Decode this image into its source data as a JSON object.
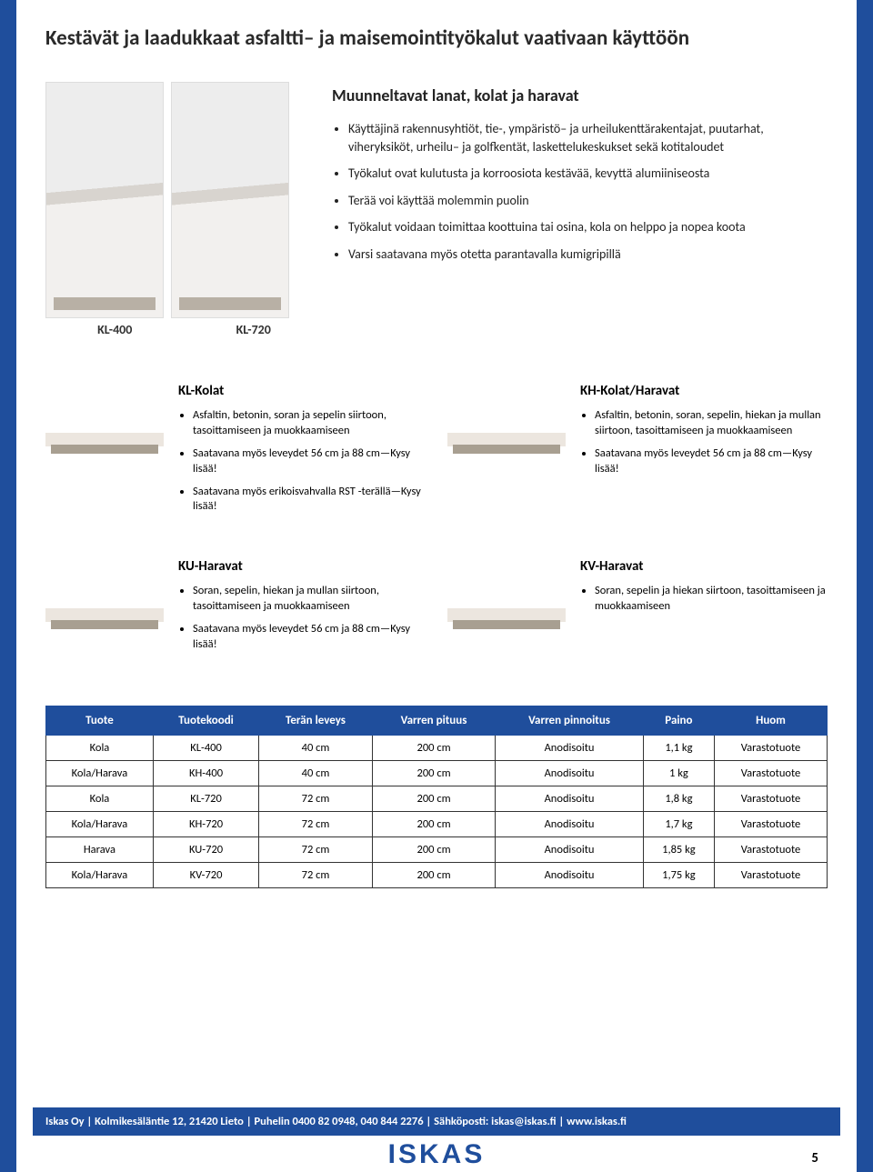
{
  "title": "Kestävät ja laadukkaat asfaltti– ja maisemointityökalut vaativaan käyttöön",
  "hero": {
    "heading": "Muunneltavat lanat, kolat ja haravat",
    "image_labels": [
      "KL-400",
      "KL-720"
    ],
    "bullets": [
      "Käyttäjinä rakennusyhtiöt, tie-, ympäristö– ja urheilukenttärakentajat, puutarhat, viheryksiköt, urheilu– ja golfkentät, laskettelukeskukset sekä kotitaloudet",
      "Työkalut ovat kulutusta ja korroosiota kestävää, kevyttä alumiiniseosta",
      "Terää voi käyttää molemmin puolin",
      "Työkalut voidaan toimittaa koottuina tai osina, kola on helppo ja nopea koota",
      "Varsi saatavana myös otetta parantavalla kumigripillä"
    ]
  },
  "products": [
    {
      "name": "KL-Kolat",
      "bullets": [
        "Asfaltin, betonin, soran ja sepelin siirtoon, tasoittamiseen ja muokkaamiseen",
        "Saatavana myös leveydet 56 cm ja 88 cm—Kysy lisää!",
        "Saatavana myös erikoisvahvalla RST -terällä—Kysy lisää!"
      ]
    },
    {
      "name": "KH-Kolat/Haravat",
      "bullets": [
        "Asfaltin, betonin, soran, sepelin, hiekan ja mullan siirtoon, tasoittamiseen ja muokkaamiseen",
        "Saatavana myös leveydet 56 cm ja 88 cm—Kysy lisää!"
      ]
    },
    {
      "name": "KU-Haravat",
      "bullets": [
        "Soran, sepelin, hiekan ja mullan siirtoon, tasoittamiseen ja muokkaamiseen",
        "Saatavana myös leveydet 56 cm ja 88 cm—Kysy lisää!"
      ]
    },
    {
      "name": "KV-Haravat",
      "bullets": [
        "Soran, sepelin ja hiekan siirtoon, tasoittamiseen ja muokkaamiseen"
      ]
    }
  ],
  "table": {
    "headers": [
      "Tuote",
      "Tuotekoodi",
      "Terän leveys",
      "Varren pituus",
      "Varren pinnoitus",
      "Paino",
      "Huom"
    ],
    "rows": [
      [
        "Kola",
        "KL-400",
        "40 cm",
        "200 cm",
        "Anodisoitu",
        "1,1 kg",
        "Varastotuote"
      ],
      [
        "Kola/Harava",
        "KH-400",
        "40 cm",
        "200 cm",
        "Anodisoitu",
        "1 kg",
        "Varastotuote"
      ],
      [
        "Kola",
        "KL-720",
        "72 cm",
        "200 cm",
        "Anodisoitu",
        "1,8 kg",
        "Varastotuote"
      ],
      [
        "Kola/Harava",
        "KH-720",
        "72 cm",
        "200 cm",
        "Anodisoitu",
        "1,7 kg",
        "Varastotuote"
      ],
      [
        "Harava",
        "KU-720",
        "72 cm",
        "200 cm",
        "Anodisoitu",
        "1,85 kg",
        "Varastotuote"
      ],
      [
        "Kola/Harava",
        "KV-720",
        "72 cm",
        "200 cm",
        "Anodisoitu",
        "1,75 kg",
        "Varastotuote"
      ]
    ]
  },
  "footer": "Iskas Oy | Kolmikesäläntie 12, 21420 Lieto | Puhelin  0400 82 0948, 040 844 2276 | Sähköposti: iskas@iskas.fi | www.iskas.fi",
  "logo": "ISKAS",
  "page_number": "5",
  "colors": {
    "brand_blue": "#1f4e9c"
  }
}
